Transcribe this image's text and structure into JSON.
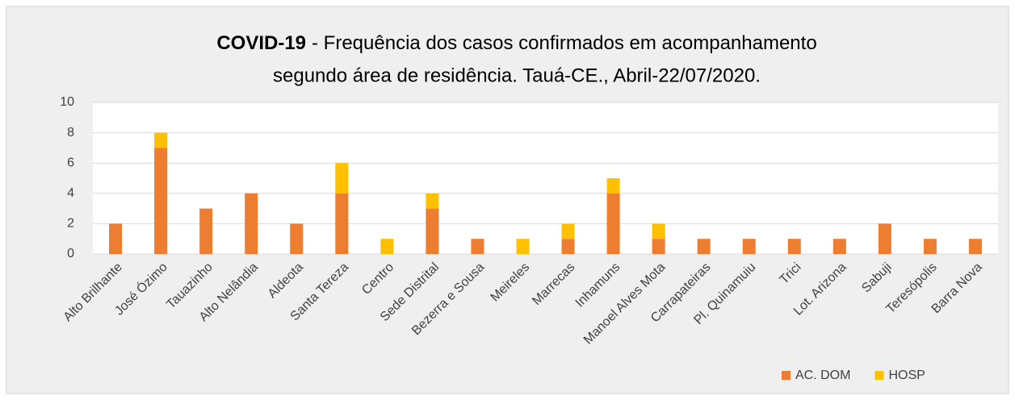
{
  "chart_data": {
    "type": "stacked_bar",
    "title_lead": "COVID-19",
    "title": [
      "- Frequência dos casos confirmados em acompanhamento",
      "segundo área de residência. Tauá-CE., Abril-22/07/2020."
    ],
    "categories": [
      "Alto Brilhante",
      "José Ózimo",
      "Tauazinho",
      "Alto Nelândia",
      "Aldeota",
      "Santa Tereza",
      "Centro",
      "Sede Distrital",
      "Bezerra e Sousa",
      "Meireles",
      "Marrecas",
      "Inhamuns",
      "Manoel Alves Mota",
      "Carrapateiras",
      "Pl. Quinamuiu",
      "Trici",
      "Lot. Arizona",
      "Sabuji",
      "Teresópolis",
      "Barra Nova"
    ],
    "series": [
      {
        "name": "AC. DOM",
        "color": "#ed7d31",
        "values": [
          2,
          7,
          3,
          4,
          2,
          4,
          0,
          3,
          1,
          0,
          1,
          4,
          1,
          1,
          1,
          1,
          1,
          2,
          1,
          1
        ]
      },
      {
        "name": "HOSP",
        "color": "#ffc000",
        "values": [
          0,
          1,
          0,
          0,
          0,
          2,
          1,
          1,
          0,
          1,
          1,
          1,
          1,
          0,
          0,
          0,
          0,
          0,
          0,
          0
        ]
      }
    ],
    "ylim": [
      0,
      10
    ],
    "yticks": [
      0,
      2,
      4,
      6,
      8,
      10
    ],
    "grid": true,
    "legend": "bottom-right"
  }
}
